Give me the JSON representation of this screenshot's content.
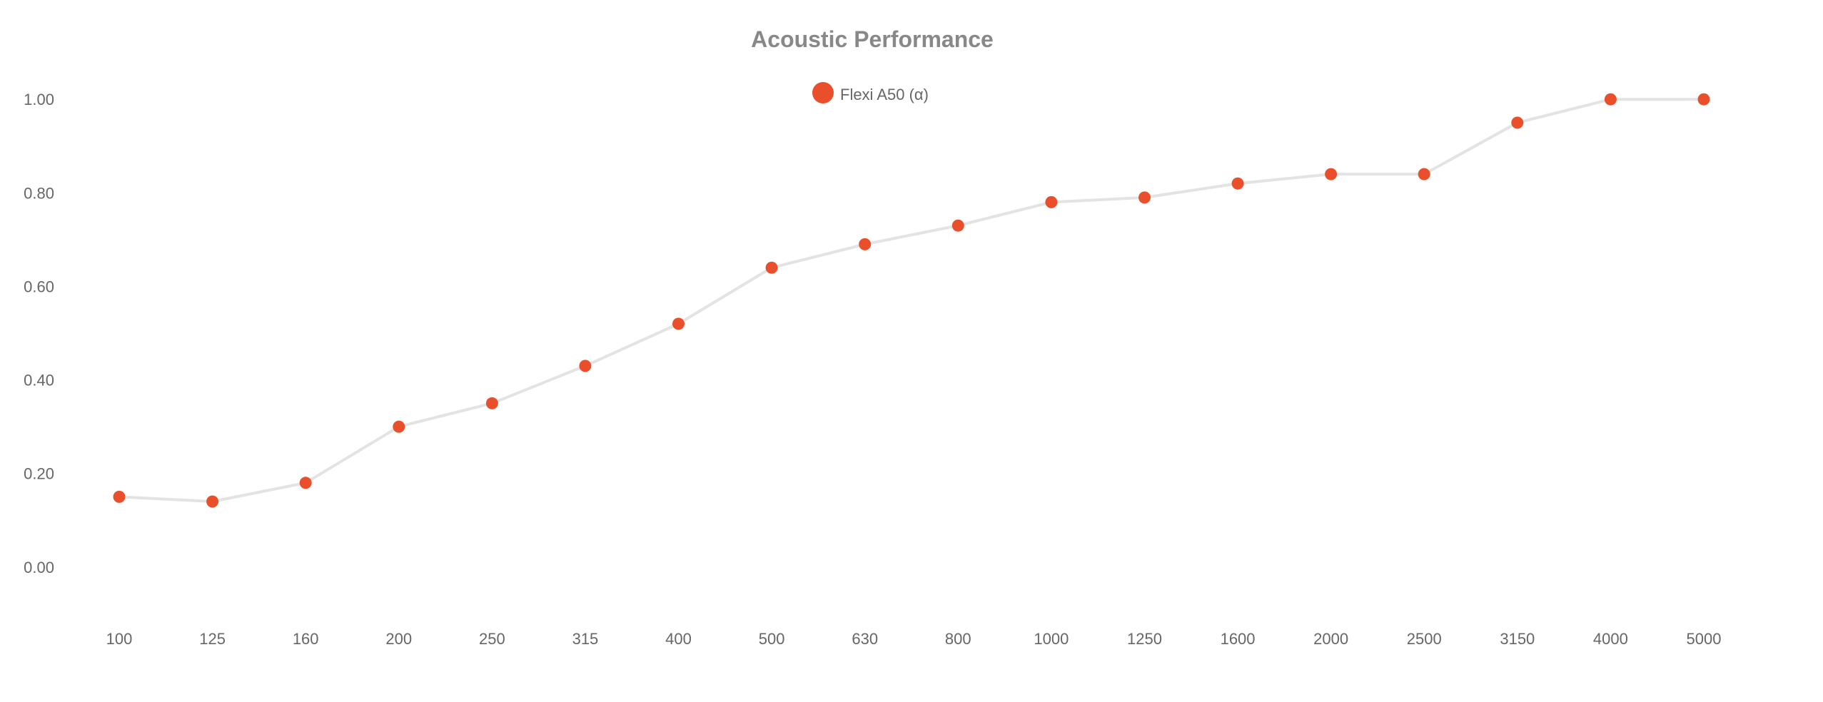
{
  "chart_data": {
    "type": "line",
    "title": "Acoustic Performance",
    "xlabel": "",
    "ylabel": "",
    "categories": [
      "100",
      "125",
      "160",
      "200",
      "250",
      "315",
      "400",
      "500",
      "630",
      "800",
      "1000",
      "1250",
      "1600",
      "2000",
      "2500",
      "3150",
      "4000",
      "5000"
    ],
    "series": [
      {
        "name": "Flexi A50 (α)",
        "values": [
          0.15,
          0.14,
          0.18,
          0.3,
          0.35,
          0.43,
          0.52,
          0.64,
          0.69,
          0.73,
          0.78,
          0.79,
          0.82,
          0.84,
          0.84,
          0.95,
          1.0,
          1.0
        ],
        "marker_color": "#E94F2B",
        "line_color": "#E3E3E3"
      }
    ],
    "yticks": [
      "0.00",
      "0.20",
      "0.40",
      "0.60",
      "0.80",
      "1.00"
    ],
    "ylim": [
      -0.13,
      1.13
    ],
    "grid": false,
    "legend_position": "top-center"
  }
}
